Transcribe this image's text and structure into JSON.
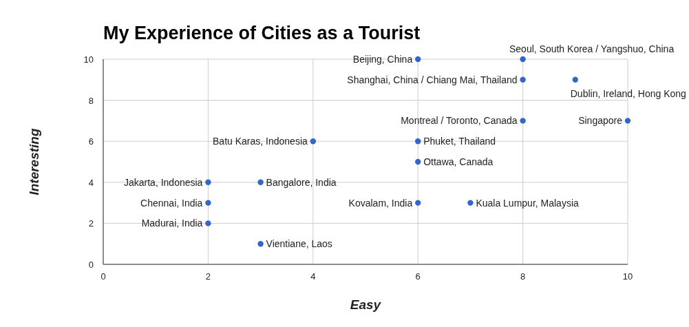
{
  "chart_data": {
    "type": "scatter",
    "title": "My Experience of Cities as a Tourist",
    "xlabel": "Easy",
    "ylabel": "Interesting",
    "x": [
      6,
      8,
      8,
      9,
      8,
      10,
      4,
      6,
      6,
      2,
      3,
      2,
      6,
      7,
      2,
      3
    ],
    "series": [
      {
        "color": "#3366cc",
        "values": [
          10,
          10,
          9,
          9,
          7,
          7,
          6,
          6,
          5,
          4,
          4,
          3,
          3,
          3,
          2,
          1
        ]
      }
    ],
    "annotations": [
      {
        "text": "Beijing, China",
        "x": 6,
        "y": 10
      },
      {
        "text": "Seoul, South Korea / Yangshuo, China",
        "x": 8,
        "y": 10
      },
      {
        "text": "Shanghai, China / Chiang Mai, Thailand",
        "x": 8,
        "y": 9
      },
      {
        "text": "Dublin, Ireland, Hong Kong",
        "x": 9,
        "y": 9
      },
      {
        "text": "Montreal / Toronto, Canada",
        "x": 8,
        "y": 7
      },
      {
        "text": "Singapore",
        "x": 10,
        "y": 7
      },
      {
        "text": "Batu Karas, Indonesia",
        "x": 4,
        "y": 6
      },
      {
        "text": "Phuket, Thailand",
        "x": 6,
        "y": 6
      },
      {
        "text": "Ottawa, Canada",
        "x": 6,
        "y": 5
      },
      {
        "text": "Jakarta, Indonesia",
        "x": 2,
        "y": 4
      },
      {
        "text": "Bangalore, India",
        "x": 3,
        "y": 4
      },
      {
        "text": "Chennai, India",
        "x": 2,
        "y": 3
      },
      {
        "text": "Kovalam, India",
        "x": 6,
        "y": 3
      },
      {
        "text": "Kuala Lumpur, Malaysia",
        "x": 7,
        "y": 3
      },
      {
        "text": "Madurai, India",
        "x": 2,
        "y": 2
      },
      {
        "text": "Vientiane, Laos",
        "x": 3,
        "y": 1
      }
    ],
    "xlim": [
      0,
      10
    ],
    "ylim": [
      0,
      10
    ],
    "xticks": [
      0,
      2,
      4,
      6,
      8,
      10
    ],
    "yticks": [
      0,
      2,
      4,
      6,
      8,
      10
    ],
    "grid": true,
    "marker": "circle"
  }
}
